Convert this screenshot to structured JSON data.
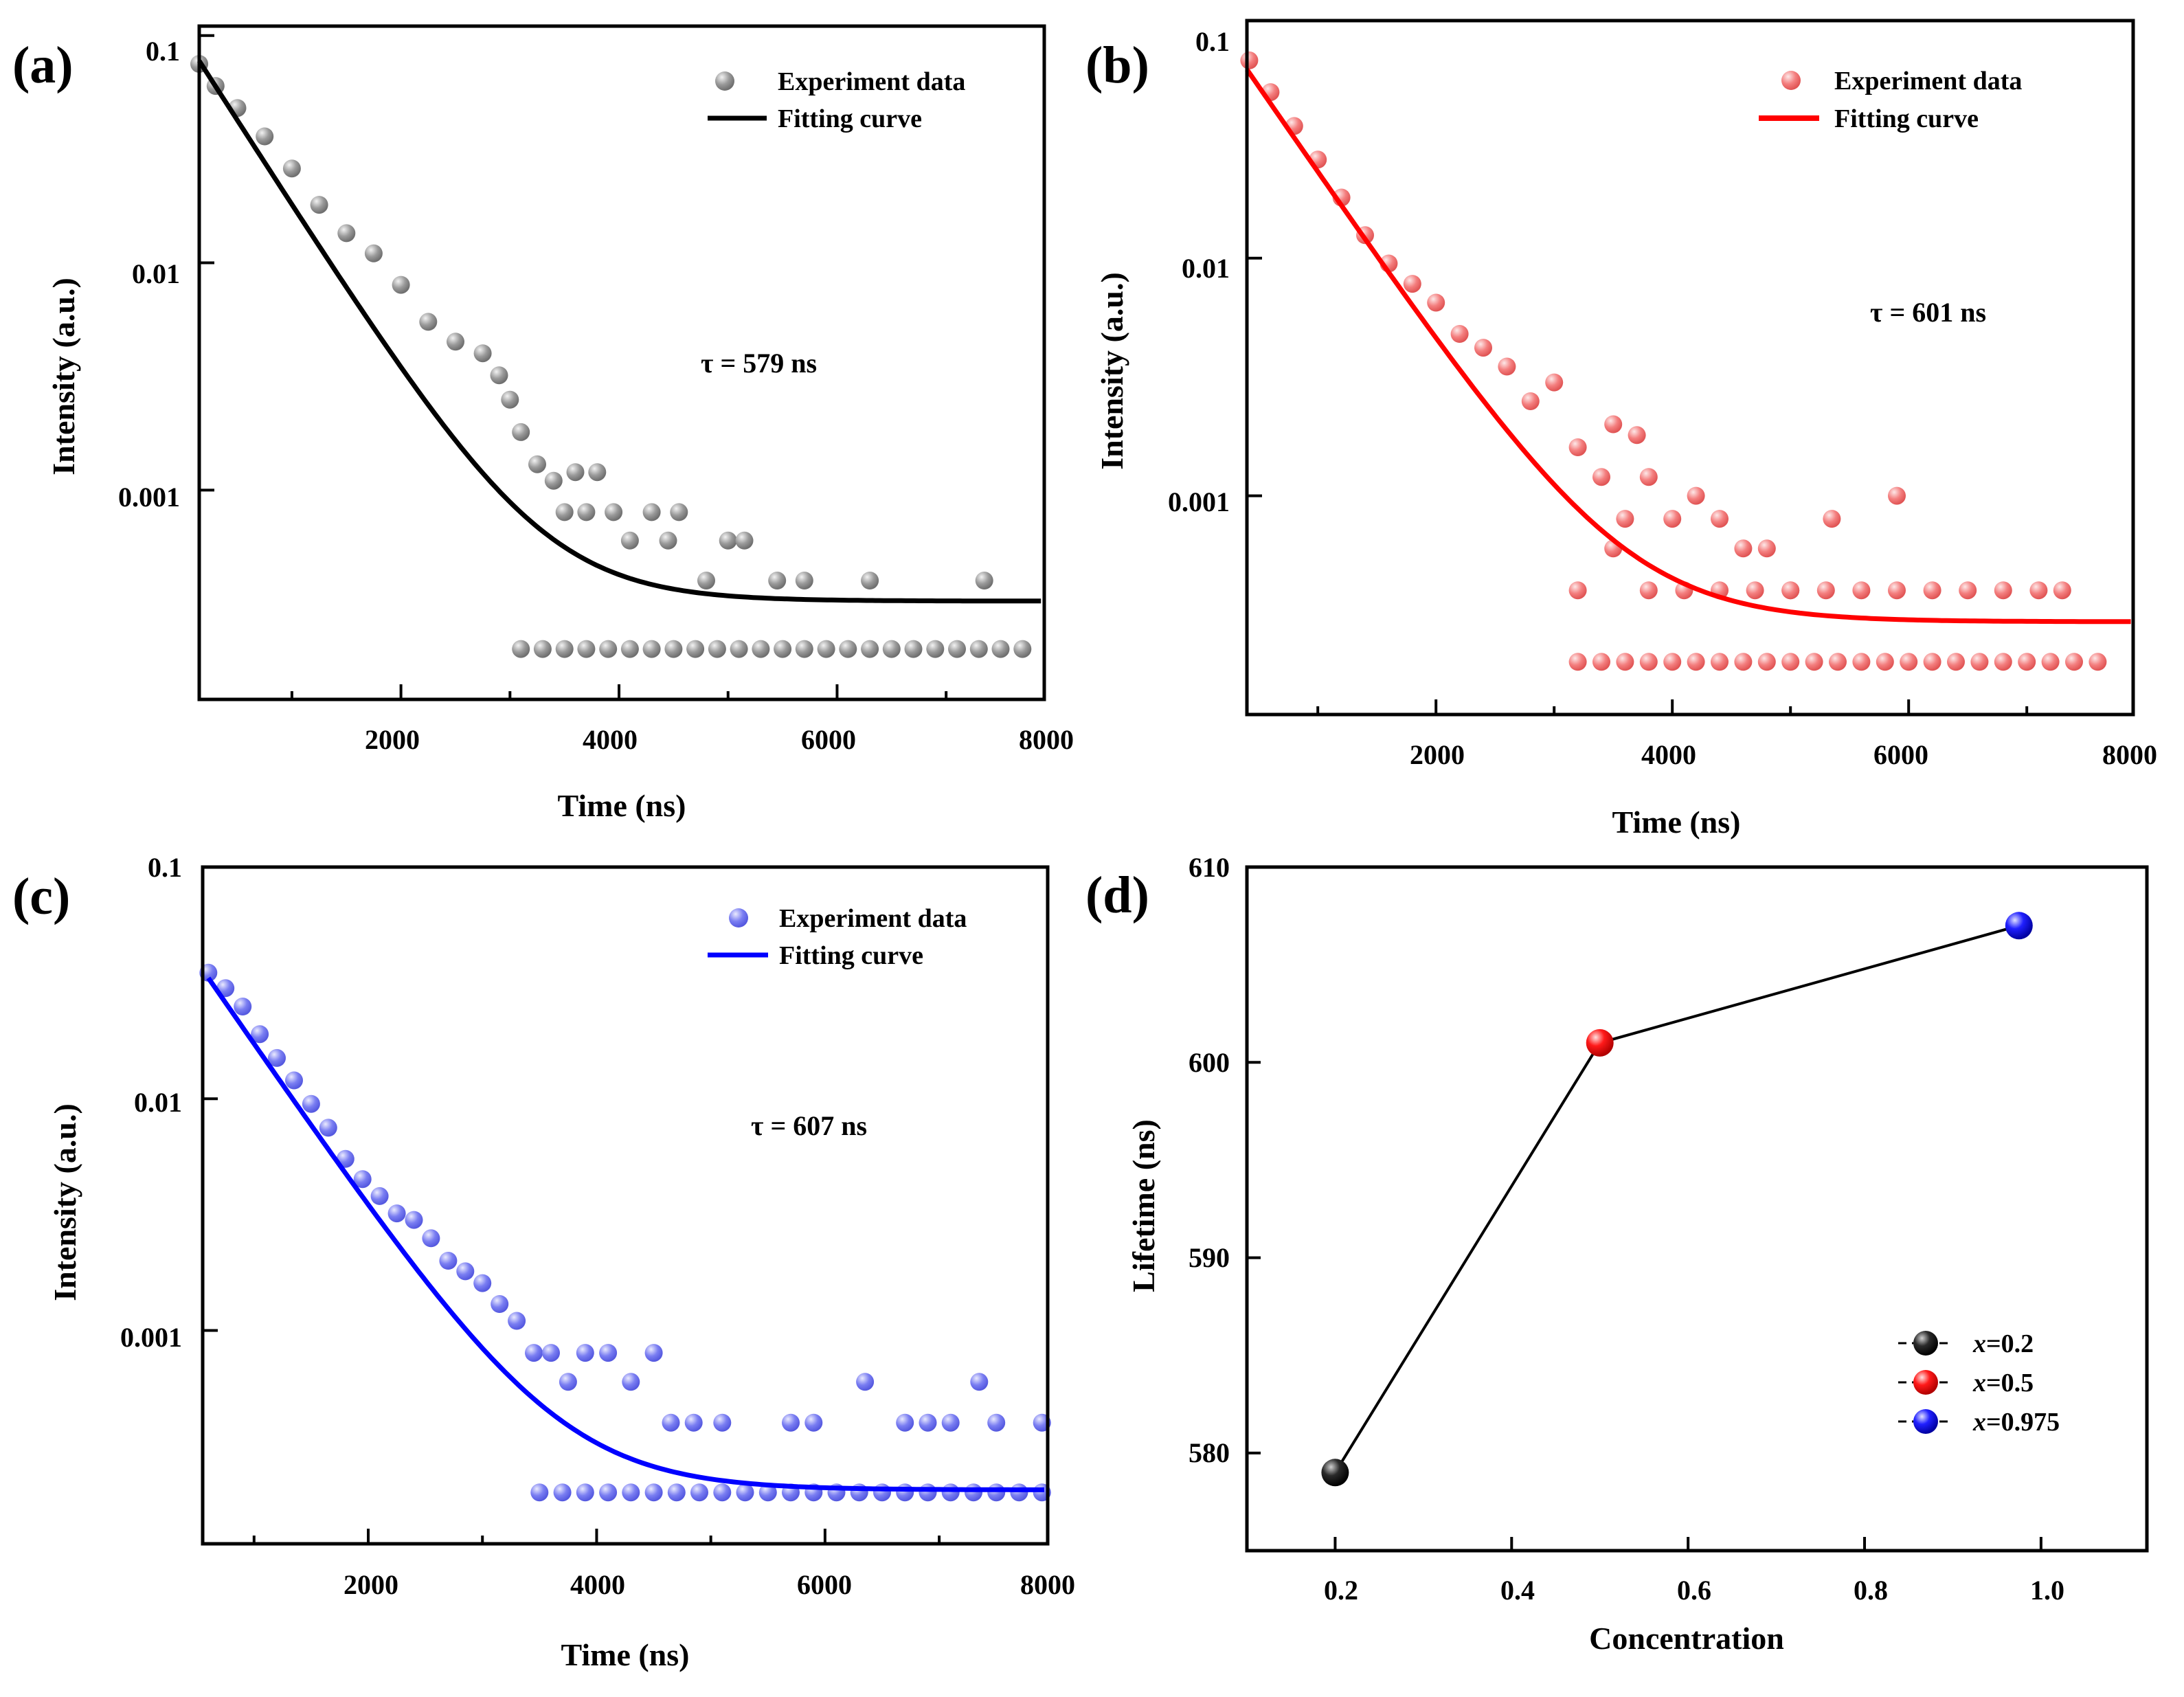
{
  "chart_data": [
    {
      "panel": "(a)",
      "type": "scatter",
      "title": "",
      "xlabel": "Time (ns)",
      "ylabel": "Intensity (a.u.)",
      "xlim": [
        150,
        7900
      ],
      "ylim": [
        0.00012,
        0.11
      ],
      "yscale": "log",
      "x_ticks": [
        "2000",
        "4000",
        "6000",
        "8000"
      ],
      "y_ticks": [
        "0.1",
        "0.01",
        "0.001"
      ],
      "annotation": "τ = 579 ns",
      "legend": [
        "Experiment data",
        "Fitting curve"
      ],
      "legend_position": "top-right",
      "colors": {
        "scatter": "#9a9a9a",
        "scatter_light": "#e4e4e4",
        "fit": "#000000"
      },
      "series": [
        {
          "name": "Experiment data",
          "x": [
            150,
            300,
            500,
            750,
            1000,
            1250,
            1500,
            1750,
            2000,
            2250,
            2500,
            2750,
            2900,
            3000,
            3100,
            3250,
            3400,
            3500,
            3600,
            3700,
            3800,
            3950,
            4100,
            4300,
            4450,
            4550,
            4800,
            5000,
            5150,
            5450,
            5700,
            6300,
            7350,
            3100,
            3300,
            3500,
            3700,
            3900,
            4100,
            4300,
            4500,
            4700,
            4900,
            5100,
            5300,
            5500,
            5700,
            5900,
            6100,
            6300,
            6500,
            6700,
            6900,
            7100,
            7300,
            7500,
            7700
          ],
          "y": [
            0.075,
            0.06,
            0.048,
            0.036,
            0.026,
            0.018,
            0.0135,
            0.011,
            0.008,
            0.0055,
            0.0045,
            0.004,
            0.0032,
            0.0025,
            0.0018,
            0.0013,
            0.0011,
            0.0008,
            0.0012,
            0.0008,
            0.0012,
            0.0008,
            0.0006,
            0.0008,
            0.0006,
            0.0008,
            0.0004,
            0.0006,
            0.0006,
            0.0004,
            0.0004,
            0.0004,
            0.0004,
            0.0002,
            0.0002,
            0.0002,
            0.0002,
            0.0002,
            0.0002,
            0.0002,
            0.0002,
            0.0002,
            0.0002,
            0.0002,
            0.0002,
            0.0002,
            0.0002,
            0.0002,
            0.0002,
            0.0002,
            0.0002,
            0.0002,
            0.0002,
            0.0002,
            0.0002,
            0.0002,
            0.0002
          ]
        },
        {
          "name": "Fitting curve",
          "A": 0.077,
          "tau": 579,
          "y0": 0.000325,
          "x0": 150
        }
      ]
    },
    {
      "panel": "(b)",
      "type": "scatter",
      "title": "",
      "xlabel": "Time (ns)",
      "ylabel": "Intensity (a.u.)",
      "xlim": [
        400,
        7900
      ],
      "ylim": [
        0.00012,
        0.1
      ],
      "yscale": "log",
      "x_ticks": [
        "2000",
        "4000",
        "6000",
        "8000"
      ],
      "y_ticks": [
        "0.1",
        "0.01",
        "0.001"
      ],
      "annotation": "τ = 601 ns",
      "legend": [
        "Experiment data",
        "Fitting curve"
      ],
      "legend_position": "top-right",
      "colors": {
        "scatter": "#f47f7f",
        "scatter_light": "#fde0e0",
        "fit": "#ff0000"
      },
      "series": [
        {
          "name": "Experiment data",
          "x": [
            420,
            600,
            800,
            1000,
            1200,
            1400,
            1600,
            1800,
            2000,
            2200,
            2400,
            2600,
            2800,
            3000,
            3200,
            3400,
            3500,
            3600,
            3700,
            3800,
            4000,
            4200,
            4400,
            4600,
            4800,
            5000,
            5350,
            5900,
            3200,
            3500,
            3800,
            4100,
            4400,
            4700,
            5000,
            5300,
            5600,
            5900,
            6200,
            6500,
            6800,
            7100,
            7300,
            3200,
            3400,
            3600,
            3800,
            4000,
            4200,
            4400,
            4600,
            4800,
            5000,
            5200,
            5400,
            5600,
            5800,
            6000,
            6200,
            6400,
            6600,
            6800,
            7000,
            7200,
            7400,
            7600
          ],
          "y": [
            0.068,
            0.05,
            0.036,
            0.026,
            0.018,
            0.0125,
            0.0095,
            0.0078,
            0.0065,
            0.0048,
            0.0042,
            0.0035,
            0.0025,
            0.003,
            0.0016,
            0.0012,
            0.002,
            0.0008,
            0.0018,
            0.0012,
            0.0008,
            0.001,
            0.0008,
            0.0006,
            0.0006,
            0.0004,
            0.0008,
            0.001,
            0.0004,
            0.0006,
            0.0004,
            0.0004,
            0.0004,
            0.0004,
            0.0004,
            0.0004,
            0.0004,
            0.0004,
            0.0004,
            0.0004,
            0.0004,
            0.0004,
            0.0004,
            0.0002,
            0.0002,
            0.0002,
            0.0002,
            0.0002,
            0.0002,
            0.0002,
            0.0002,
            0.0002,
            0.0002,
            0.0002,
            0.0002,
            0.0002,
            0.0002,
            0.0002,
            0.0002,
            0.0002,
            0.0002,
            0.0002,
            0.0002,
            0.0002,
            0.0002,
            0.0002
          ]
        },
        {
          "name": "Fitting curve",
          "A": 0.062,
          "tau": 601,
          "y0": 0.000295,
          "x0": 400
        }
      ]
    },
    {
      "panel": "(c)",
      "type": "scatter",
      "title": "",
      "xlabel": "Time (ns)",
      "ylabel": "Intensity (a.u.)",
      "xlim": [
        550,
        7950
      ],
      "ylim": [
        0.00012,
        0.1
      ],
      "yscale": "log",
      "x_ticks": [
        "2000",
        "4000",
        "6000",
        "8000"
      ],
      "y_ticks": [
        "0.1",
        "0.01",
        "0.001"
      ],
      "annotation": "τ = 607 ns",
      "legend": [
        "Experiment data",
        "Fitting curve"
      ],
      "legend_position": "top-right",
      "colors": {
        "scatter": "#7a7ef2",
        "scatter_light": "#e2e3fd",
        "fit": "#0000ff"
      },
      "series": [
        {
          "name": "Experiment data",
          "x": [
            600,
            750,
            900,
            1050,
            1200,
            1350,
            1500,
            1650,
            1800,
            1950,
            2100,
            2250,
            2400,
            2550,
            2700,
            2850,
            3000,
            3150,
            3300,
            3450,
            3600,
            3750,
            3900,
            4100,
            4300,
            4500,
            4650,
            4850,
            5100,
            5700,
            5900,
            6350,
            6700,
            6900,
            7100,
            7350,
            7500,
            7900,
            3500,
            3700,
            3900,
            4100,
            4300,
            4500,
            4700,
            4900,
            5100,
            5300,
            5500,
            5700,
            5900,
            6100,
            6300,
            6500,
            6700,
            6900,
            7100,
            7300,
            7500,
            7700,
            7900
          ],
          "y": [
            0.035,
            0.03,
            0.025,
            0.019,
            0.015,
            0.012,
            0.0095,
            0.0075,
            0.0055,
            0.0045,
            0.0038,
            0.0032,
            0.003,
            0.0025,
            0.002,
            0.0018,
            0.0016,
            0.0013,
            0.0011,
            0.0008,
            0.0008,
            0.0006,
            0.0008,
            0.0008,
            0.0006,
            0.0008,
            0.0004,
            0.0004,
            0.0004,
            0.0004,
            0.0004,
            0.0006,
            0.0004,
            0.0004,
            0.0004,
            0.0006,
            0.0004,
            0.0004,
            0.0002,
            0.0002,
            0.0002,
            0.0002,
            0.0002,
            0.0002,
            0.0002,
            0.0002,
            0.0002,
            0.0002,
            0.0002,
            0.0002,
            0.0002,
            0.0002,
            0.0002,
            0.0002,
            0.0002,
            0.0002,
            0.0002,
            0.0002,
            0.0002,
            0.0002,
            0.0002
          ]
        },
        {
          "name": "Fitting curve",
          "A": 0.033,
          "tau": 607,
          "y0": 0.000205,
          "x0": 600
        }
      ]
    },
    {
      "panel": "(d)",
      "type": "line",
      "title": "",
      "xlabel": "Concentration",
      "ylabel": "Lifetime (ns)",
      "xlim": [
        0.1,
        1.12
      ],
      "ylim": [
        575,
        610
      ],
      "x_ticks": [
        "0.2",
        "0.4",
        "0.6",
        "0.8",
        "1.0"
      ],
      "y_ticks": [
        "580",
        "590",
        "600",
        "610"
      ],
      "legend_position": "bottom-right",
      "series": [
        {
          "name": "x=0.2",
          "legend_prefix": "x",
          "legend_value": "=0.2",
          "x": 0.2,
          "y": 579,
          "color": "#000000"
        },
        {
          "name": "x=0.5",
          "legend_prefix": "x",
          "legend_value": "=0.5",
          "x": 0.5,
          "y": 601,
          "color": "#ff0000"
        },
        {
          "name": "x=0.975",
          "legend_prefix": "x",
          "legend_value": "=0.975",
          "x": 0.975,
          "y": 607,
          "color": "#0000ff"
        }
      ]
    }
  ]
}
